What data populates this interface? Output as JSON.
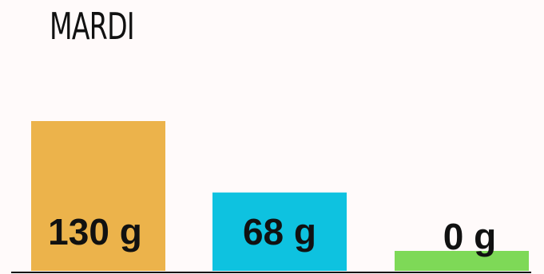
{
  "chart_data": {
    "type": "bar",
    "title": "MARDI",
    "categories": [
      "",
      "",
      ""
    ],
    "values": [
      130,
      68,
      0
    ],
    "value_labels": [
      "130 g",
      "68 g",
      "0 g"
    ],
    "colors": [
      "#ecb34b",
      "#0ec2e0",
      "#7ed957"
    ],
    "axis_color": "#111111"
  }
}
